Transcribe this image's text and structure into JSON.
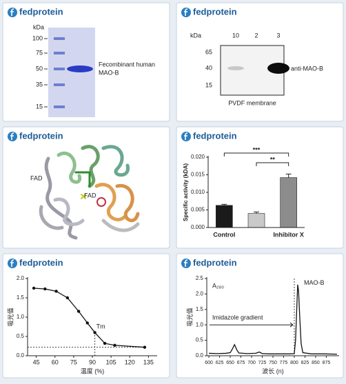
{
  "brand": "fedprotein",
  "sds_page": {
    "unit": "kDa",
    "markers": [
      100,
      75,
      50,
      35,
      15
    ],
    "label": [
      "Fecombinant human",
      "MAO-B"
    ]
  },
  "western_blot": {
    "unit": "kDa",
    "lanes": [
      10,
      2,
      3
    ],
    "markers": [
      65,
      40,
      15
    ],
    "label": "anti-MAO-B",
    "caption": "PVDF membrane"
  },
  "structure": {
    "labels": [
      "FAD",
      "FAD"
    ]
  },
  "chart_data": [
    {
      "type": "bar",
      "ylabel": "Specific activity (kDA)",
      "categories": [
        "Control",
        null,
        "Inhibitor X"
      ],
      "values": [
        0.0063,
        0.004,
        0.0142
      ],
      "errors": [
        0.0003,
        0.0004,
        0.001
      ],
      "colors": [
        "#1a1a1a",
        "#c9c9c9",
        "#8c8c8c"
      ],
      "ylim": [
        0,
        0.02
      ],
      "yticks": [
        {
          "value": 0,
          "label": "0.000"
        },
        {
          "value": 0.005,
          "label": "0.005"
        },
        {
          "value": 0.01,
          "label": "0.010"
        },
        {
          "value": 0.015,
          "label": "0.015"
        },
        {
          "value": 0.02,
          "label": "0.020"
        }
      ],
      "significance": [
        "***",
        "**"
      ]
    },
    {
      "type": "line",
      "ylabel": "吸光值",
      "xlabel": "温度 (%)",
      "x": [
        43,
        52,
        61,
        70,
        79,
        86,
        92,
        100,
        108,
        132
      ],
      "values": [
        1.75,
        1.73,
        1.67,
        1.5,
        1.15,
        0.85,
        0.6,
        0.32,
        0.27,
        0.22
      ],
      "color": "#111111",
      "markers": true,
      "xlim": [
        38,
        142
      ],
      "ylim": [
        0,
        2
      ],
      "xticks": [
        45,
        60,
        75,
        90,
        105,
        120,
        135
      ],
      "yticks": [
        {
          "value": 0,
          "label": "0.0"
        },
        {
          "value": 0.5,
          "label": "0.5"
        },
        {
          "value": 1,
          "label": "1.0"
        },
        {
          "value": 1.5,
          "label": "1.5"
        },
        {
          "value": 2,
          "label": "2.0"
        }
      ],
      "annotation": "Tm",
      "vline": 92,
      "hline": 0.22
    },
    {
      "type": "line",
      "ylabel": "吸光值",
      "xlabel": "波长 (n)",
      "x": [
        600,
        620,
        640,
        650,
        655,
        660,
        665,
        670,
        690,
        710,
        718,
        725,
        740,
        770,
        790,
        800,
        803,
        806,
        808,
        810,
        813,
        816,
        820,
        840,
        870,
        900
      ],
      "values": [
        0.08,
        0.07,
        0.08,
        0.1,
        0.22,
        0.36,
        0.2,
        0.09,
        0.07,
        0.08,
        0.12,
        0.07,
        0.06,
        0.06,
        0.06,
        0.07,
        0.5,
        1.6,
        2.3,
        2.1,
        1.2,
        0.4,
        0.1,
        0.06,
        0.06,
        0.05
      ],
      "color": "#111111",
      "markers": false,
      "xlim": [
        595,
        905
      ],
      "ylim": [
        0,
        2.5
      ],
      "xticks": [
        600,
        625,
        650,
        675,
        700,
        725,
        750,
        775,
        800,
        825,
        850,
        875
      ],
      "yticks": [
        {
          "value": 0,
          "label": "0.0"
        },
        {
          "value": 0.5,
          "label": "0.5"
        },
        {
          "value": 1,
          "label": "1.0"
        },
        {
          "value": 1.5,
          "label": "1.5"
        },
        {
          "value": 2,
          "label": "2.0"
        },
        {
          "value": 2.5,
          "label": "2.5"
        }
      ],
      "signal": "A₂₈₀",
      "peak_label": "MAO-B",
      "gradient_label": "Imidazole gradient",
      "vline": 800
    }
  ]
}
